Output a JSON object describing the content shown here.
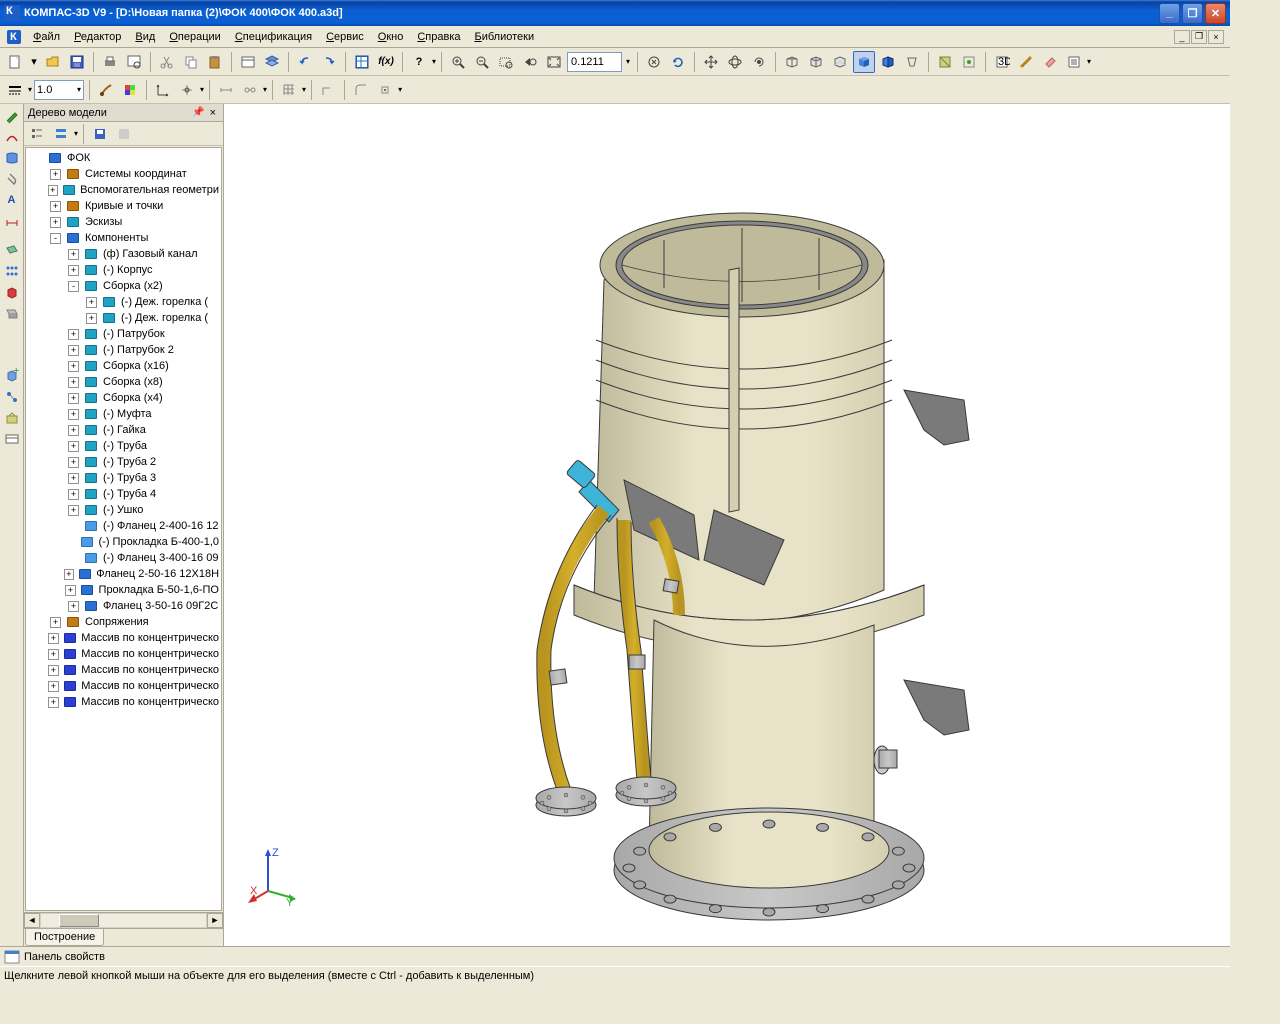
{
  "title": "КОМПАС-3D V9 - [D:\\Новая папка (2)\\ФОК 400\\ФОК 400.a3d]",
  "menu": [
    "Файл",
    "Редактор",
    "Вид",
    "Операции",
    "Спецификация",
    "Сервис",
    "Окно",
    "Справка",
    "Библиотеки"
  ],
  "toolbar1": {
    "zoom_value": "0.1211"
  },
  "toolbar2": {
    "line_weight": "1.0"
  },
  "sidebar": {
    "title": "Дерево модели",
    "tab": "Построение"
  },
  "tree": [
    {
      "d": 0,
      "exp": null,
      "icon": "#2a6fd4",
      "label": "ФОК"
    },
    {
      "d": 1,
      "exp": "+",
      "icon": "#c27b10",
      "label": "Системы координат"
    },
    {
      "d": 1,
      "exp": "+",
      "icon": "#1fa3c4",
      "label": "Вспомогательная геометри"
    },
    {
      "d": 1,
      "exp": "+",
      "icon": "#c27b10",
      "label": "Кривые и точки"
    },
    {
      "d": 1,
      "exp": "+",
      "icon": "#1fa3c4",
      "label": "Эскизы"
    },
    {
      "d": 1,
      "exp": "-",
      "icon": "#2a6fd4",
      "label": "Компоненты"
    },
    {
      "d": 2,
      "exp": "+",
      "icon": "#1fa3c4",
      "label": "(ф) Газовый канал"
    },
    {
      "d": 2,
      "exp": "+",
      "icon": "#1fa3c4",
      "label": "(-) Корпус"
    },
    {
      "d": 2,
      "exp": "-",
      "icon": "#1fa3c4",
      "label": "Сборка (x2)"
    },
    {
      "d": 3,
      "exp": "+",
      "icon": "#1fa3c4",
      "label": "(-) Деж. горелка ("
    },
    {
      "d": 3,
      "exp": "+",
      "icon": "#1fa3c4",
      "label": "(-) Деж. горелка ("
    },
    {
      "d": 2,
      "exp": "+",
      "icon": "#1fa3c4",
      "label": "(-) Патрубок"
    },
    {
      "d": 2,
      "exp": "+",
      "icon": "#1fa3c4",
      "label": "(-) Патрубок 2"
    },
    {
      "d": 2,
      "exp": "+",
      "icon": "#1fa3c4",
      "label": "Сборка (x16)"
    },
    {
      "d": 2,
      "exp": "+",
      "icon": "#1fa3c4",
      "label": "Сборка (x8)"
    },
    {
      "d": 2,
      "exp": "+",
      "icon": "#1fa3c4",
      "label": "Сборка (x4)"
    },
    {
      "d": 2,
      "exp": "+",
      "icon": "#1fa3c4",
      "label": "(-) Муфта"
    },
    {
      "d": 2,
      "exp": "+",
      "icon": "#1fa3c4",
      "label": "(-) Гайка"
    },
    {
      "d": 2,
      "exp": "+",
      "icon": "#1fa3c4",
      "label": "(-) Труба"
    },
    {
      "d": 2,
      "exp": "+",
      "icon": "#1fa3c4",
      "label": "(-) Труба 2"
    },
    {
      "d": 2,
      "exp": "+",
      "icon": "#1fa3c4",
      "label": "(-) Труба 3"
    },
    {
      "d": 2,
      "exp": "+",
      "icon": "#1fa3c4",
      "label": "(-) Труба 4"
    },
    {
      "d": 2,
      "exp": "+",
      "icon": "#1fa3c4",
      "label": "(-) Ушко"
    },
    {
      "d": 2,
      "exp": null,
      "icon": "#4a9ce8",
      "label": "(-) Фланец 2-400-16 12"
    },
    {
      "d": 2,
      "exp": null,
      "icon": "#4a9ce8",
      "label": "(-) Прокладка Б-400-1,0"
    },
    {
      "d": 2,
      "exp": null,
      "icon": "#4a9ce8",
      "label": "(-) Фланец 3-400-16 09"
    },
    {
      "d": 2,
      "exp": "+",
      "icon": "#2a6fd4",
      "label": "Фланец 2-50-16 12Х18Н"
    },
    {
      "d": 2,
      "exp": "+",
      "icon": "#2a6fd4",
      "label": "Прокладка Б-50-1,6-ПО"
    },
    {
      "d": 2,
      "exp": "+",
      "icon": "#2a6fd4",
      "label": "Фланец 3-50-16 09Г2С "
    },
    {
      "d": 1,
      "exp": "+",
      "icon": "#c27b10",
      "label": "Сопряжения"
    },
    {
      "d": 1,
      "exp": "+",
      "icon": "#2a3fd4",
      "label": "Массив по концентрическо"
    },
    {
      "d": 1,
      "exp": "+",
      "icon": "#2a3fd4",
      "label": "Массив по концентрическо"
    },
    {
      "d": 1,
      "exp": "+",
      "icon": "#2a3fd4",
      "label": "Массив по концентрическо"
    },
    {
      "d": 1,
      "exp": "+",
      "icon": "#2a3fd4",
      "label": "Массив по концентрическо"
    },
    {
      "d": 1,
      "exp": "+",
      "icon": "#2a3fd4",
      "label": "Массив по концентрическо"
    }
  ],
  "panel_label": "Панель свойств",
  "status": "Щелкните левой кнопкой мыши на объекте для его выделения (вместе с Ctrl - добавить к выделенным)",
  "model_colors": {
    "body": "#e8e3c8",
    "body_shade": "#d4cfb0",
    "body_dark": "#bfba9a",
    "edge": "#3a3a3a",
    "pipe": "#d4af2a",
    "pipe_shade": "#b89420",
    "flange": "#c8c8c8",
    "flange_shade": "#a8a8a8",
    "bracket": "#7a7a7a",
    "handle": "#3eb5d8"
  },
  "axis": {
    "x": "#d03030",
    "y": "#30b030",
    "z": "#3050d0"
  }
}
